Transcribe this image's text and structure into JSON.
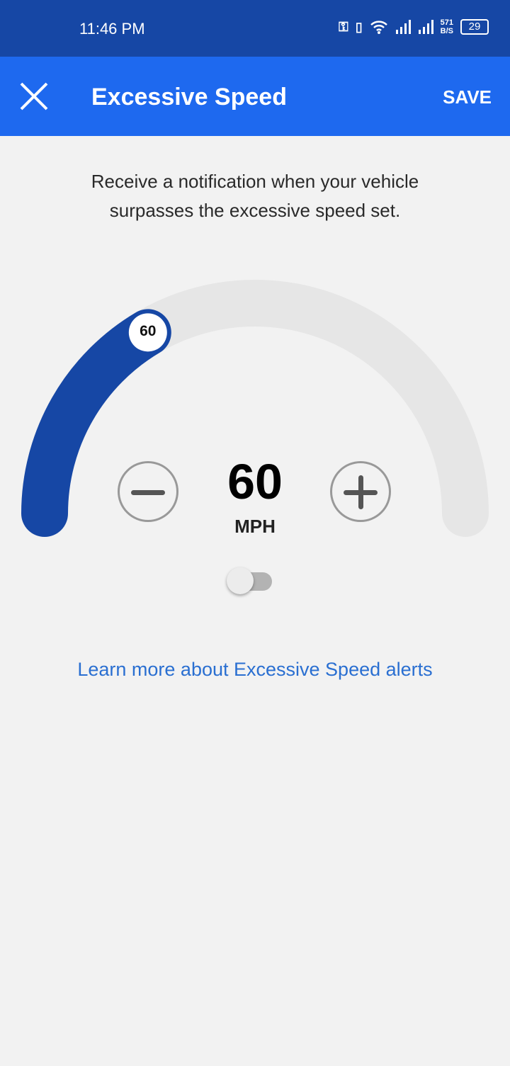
{
  "status_bar": {
    "time": "11:46 PM",
    "net_speed_value": "571",
    "net_speed_unit": "B/S",
    "battery": "29",
    "icons": [
      "vpn-key-icon",
      "vibrate-icon",
      "wifi-icon",
      "signal-icon",
      "signal-icon"
    ]
  },
  "app_bar": {
    "title": "Excessive Speed",
    "save_label": "SAVE",
    "close_icon": "close-icon"
  },
  "description": "Receive a notification when your vehicle surpasses the excessive speed set.",
  "gauge": {
    "value": "60",
    "unit": "MPH",
    "knob_label": "60",
    "fill_fraction": 0.33,
    "fill_color": "#1647a5",
    "track_color": "#e6e6e6"
  },
  "toggle": {
    "on": false
  },
  "learn_more_link": "Learn more about Excessive Speed alerts",
  "colors": {
    "status_bar": "#1647a5",
    "app_bar": "#1e69ef",
    "link": "#2a6fd1",
    "background": "#f2f2f2"
  }
}
